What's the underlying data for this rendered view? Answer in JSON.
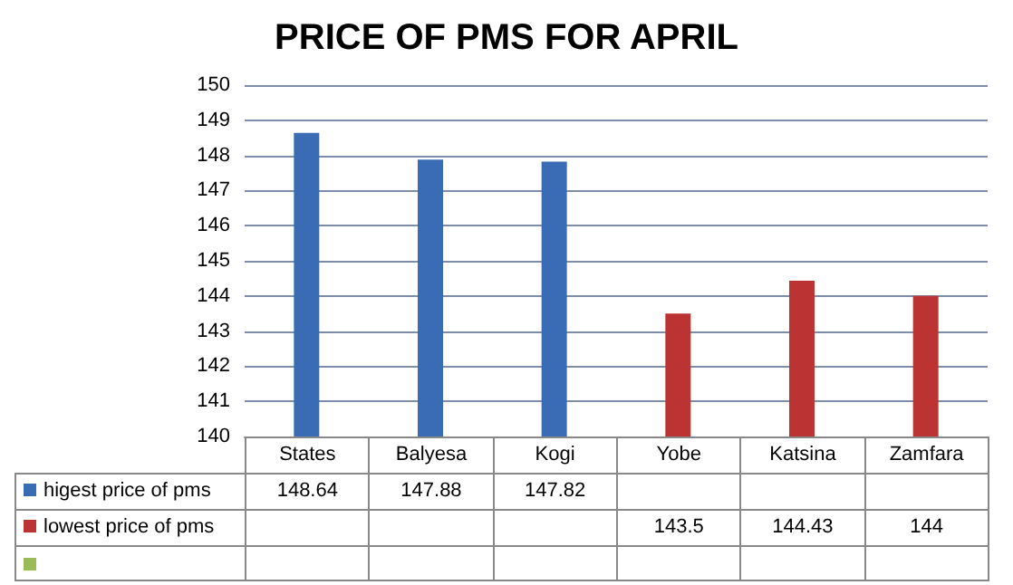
{
  "chart_data": {
    "type": "bar",
    "title": "PRICE OF PMS FOR APRIL",
    "categories": [
      "States",
      "Balyesa",
      "Kogi",
      "Yobe",
      "Katsina",
      "Zamfara"
    ],
    "series": [
      {
        "name": "higest price of pms",
        "color": "#3a6bb5",
        "values": [
          148.64,
          147.88,
          147.82,
          null,
          null,
          null
        ]
      },
      {
        "name": "lowest price of pms",
        "color": "#bb3333",
        "values": [
          null,
          null,
          null,
          143.5,
          144.43,
          144
        ]
      },
      {
        "color": "#9bbb59",
        "values": [
          null,
          null,
          null,
          null,
          null,
          null
        ]
      }
    ],
    "ylim": [
      140,
      150
    ],
    "yticks": [
      140,
      141,
      142,
      143,
      144,
      145,
      146,
      147,
      148,
      149,
      150
    ],
    "grid": "y",
    "legend": "bottom",
    "data_labels": true
  }
}
